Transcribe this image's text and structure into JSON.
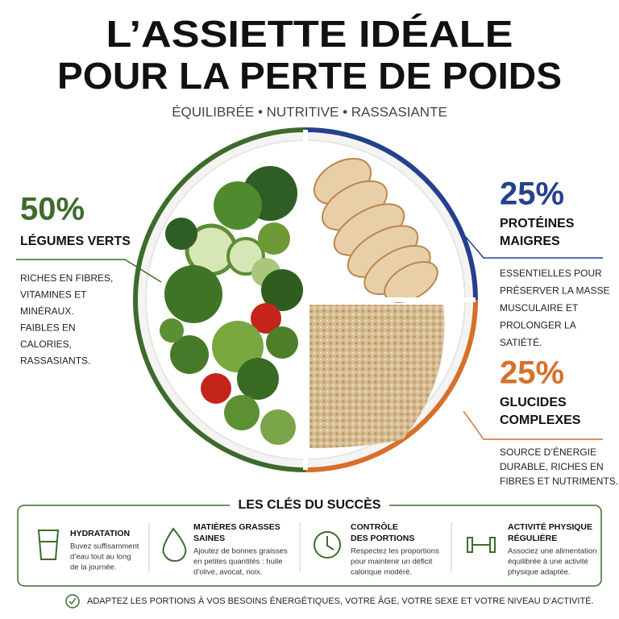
{
  "header": {
    "title_lines": [
      "L’ASSIETTE IDÉALE",
      "POUR LA PERTE DE POIDS"
    ],
    "subtitle": "ÉQUILIBRÉE • NUTRITIVE • RASSASIANTE"
  },
  "sections": [
    {
      "percent": "50%",
      "label_lines": [
        "LÉGUMES VERTS"
      ],
      "description_lines": [
        "RICHES EN FIBRES,",
        "VITAMINES ET",
        "MINÉRAUX.",
        "FAIBLES EN",
        "CALORIES,",
        "RASSASIANTS."
      ]
    },
    {
      "percent": "25%",
      "label_lines": [
        "PROTÉINES",
        "MAIGRES"
      ],
      "description_lines": [
        "ESSENTIELLES POUR",
        "PRÉSERVER LA MASSE",
        "MUSCULAIRE ET",
        "PROLONGER LA",
        "SATIÉTÉ."
      ]
    },
    {
      "percent": "25%",
      "label_lines": [
        "GLUCIDES",
        "COMPLEXES"
      ],
      "description_lines": [
        "SOURCE D’ÉNERGIE",
        "DURABLE, RICHES EN",
        "FIBRES ET NUTRIMENTS."
      ]
    }
  ],
  "tips": {
    "title": "LES CLÉS DU SUCCÈS",
    "items": [
      {
        "title_lines": [
          "HYDRATATION"
        ],
        "text_lines": [
          "Buvez suffisamment",
          "d’eau tout au long",
          "de la journée."
        ]
      },
      {
        "title_lines": [
          "MATIÈRES GRASSES",
          "SAINES"
        ],
        "text_lines": [
          "Ajoutez de bonnes graisses",
          "en petites quantités : huile",
          "d’olive, avocat, noix."
        ]
      },
      {
        "title_lines": [
          "CONTRÔLE",
          "DES PORTIONS"
        ],
        "text_lines": [
          "Respectez les proportions",
          "pour maintenir un déficit",
          "calorique modéré."
        ]
      },
      {
        "title_lines": [
          "ACTIVITÉ PHYSIQUE",
          "RÉGULIÈRE"
        ],
        "text_lines": [
          "Associez une alimentation",
          "équilibrée à une activité",
          "physique adaptée."
        ]
      }
    ]
  },
  "footer": "ADAPTEZ LES PORTIONS À VOS BESOINS ÉNERGÉTIQUES, VOTRE ÂGE, VOTRE SEXE ET VOTRE NIVEAU D’ACTIVITÉ."
}
